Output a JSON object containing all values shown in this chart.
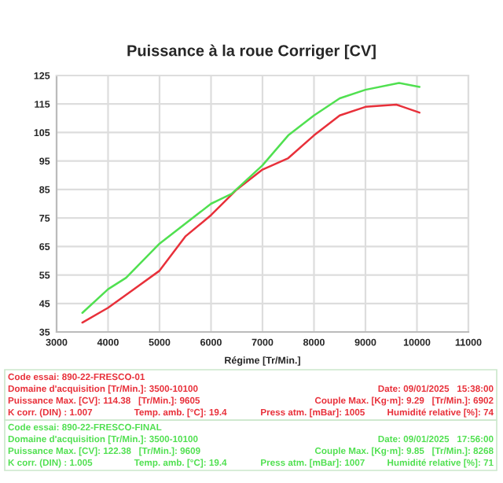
{
  "chart_data": {
    "type": "line",
    "title": "Puissance à la roue Corriger [CV]",
    "xlabel": "Régime [Tr/Min.]",
    "xlim": [
      3000,
      11000
    ],
    "xticks": [
      3000,
      4000,
      5000,
      6000,
      7000,
      8000,
      9000,
      10000,
      11000
    ],
    "ylim": [
      35,
      125
    ],
    "yticks": [
      35,
      45,
      55,
      65,
      75,
      85,
      95,
      105,
      115,
      125
    ],
    "grid": true,
    "marker": "none",
    "line_style": "solid",
    "series": [
      {
        "color": "#e8303a",
        "x": [
          3500,
          4000,
          4500,
          5000,
          5500,
          6000,
          6500,
          7000,
          7500,
          8000,
          8500,
          9000,
          9600,
          10050
        ],
        "values": [
          38.3,
          43.5,
          50,
          56.5,
          68.5,
          76,
          85,
          92,
          96,
          104,
          111,
          114,
          114.8,
          112
        ]
      },
      {
        "color": "#50e050",
        "x": [
          3500,
          4000,
          4350,
          5000,
          6000,
          6400,
          7000,
          7500,
          8000,
          8500,
          9000,
          9650,
          10050
        ],
        "values": [
          41.7,
          50,
          54,
          66,
          80,
          83.5,
          93.5,
          104,
          111,
          117,
          120,
          122.4,
          121
        ]
      }
    ],
    "annotations": [
      "Code essai: 890-22-FRESCO-01",
      "Domaine d'acquisition [Tr/Min.]: 3500-10100",
      "Date: 09/01/2025   15:38:00",
      "Puissance Max. [CV]: 114.38   [Tr/Min.]: 9605",
      "Couple Max. [Kg·m]: 9.29   [Tr/Min.]: 6902",
      "K corr. (DIN) : 1.007",
      "Temp. amb. [°C]: 19.4",
      "Press atm. [mBar]: 1005",
      "Humidité relative [%]: 74",
      "Code essai: 890-22-FRESCO-FINAL",
      "Domaine d'acquisition [Tr/Min.]: 3500-10100",
      "Date: 09/01/2025   17:56:00",
      "Puissance Max. [CV]: 122.38   [Tr/Min.]: 9609",
      "Couple Max. [Kg·m]: 9.85   [Tr/Min.]: 8268",
      "K corr. (DIN) : 1.005",
      "Temp. amb. [°C]: 19.4",
      "Press atm. [mBar]: 1007",
      "Humidité relative [%]: 71"
    ]
  }
}
